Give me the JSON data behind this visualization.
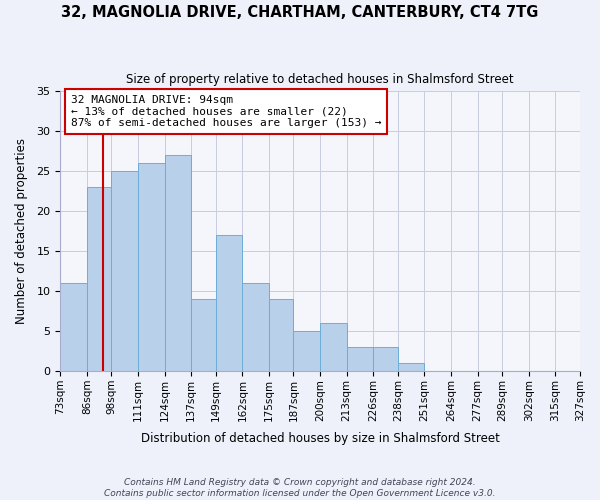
{
  "title": "32, MAGNOLIA DRIVE, CHARTHAM, CANTERBURY, CT4 7TG",
  "subtitle": "Size of property relative to detached houses in Shalmsford Street",
  "xlabel": "Distribution of detached houses by size in Shalmsford Street",
  "ylabel": "Number of detached properties",
  "bin_edges": [
    73,
    86,
    98,
    111,
    124,
    137,
    149,
    162,
    175,
    187,
    200,
    213,
    226,
    238,
    251,
    264,
    277,
    289,
    302,
    315,
    327
  ],
  "counts": [
    11,
    23,
    25,
    26,
    27,
    9,
    17,
    11,
    9,
    5,
    6,
    3,
    3,
    1,
    0,
    0,
    0,
    0,
    0,
    0
  ],
  "bar_color": "#b8d0ea",
  "bar_edge_color": "#6baed6",
  "property_size": 94,
  "vline_color": "#cc0000",
  "annotation_text": "32 MAGNOLIA DRIVE: 94sqm\n← 13% of detached houses are smaller (22)\n87% of semi-detached houses are larger (153) →",
  "annotation_box_edge_color": "#cc0000",
  "annotation_box_face_color": "#ffffff",
  "ylim": [
    0,
    35
  ],
  "yticks": [
    0,
    5,
    10,
    15,
    20,
    25,
    30,
    35
  ],
  "footer_line1": "Contains HM Land Registry data © Crown copyright and database right 2024.",
  "footer_line2": "Contains public sector information licensed under the Open Government Licence v3.0.",
  "background_color": "#eef1fa",
  "plot_background_color": "#f4f6fb",
  "grid_color": "#c8cce0",
  "tick_labels": [
    "73sqm",
    "86sqm",
    "98sqm",
    "111sqm",
    "124sqm",
    "137sqm",
    "149sqm",
    "162sqm",
    "175sqm",
    "187sqm",
    "200sqm",
    "213sqm",
    "226sqm",
    "238sqm",
    "251sqm",
    "264sqm",
    "277sqm",
    "289sqm",
    "302sqm",
    "315sqm",
    "327sqm"
  ]
}
